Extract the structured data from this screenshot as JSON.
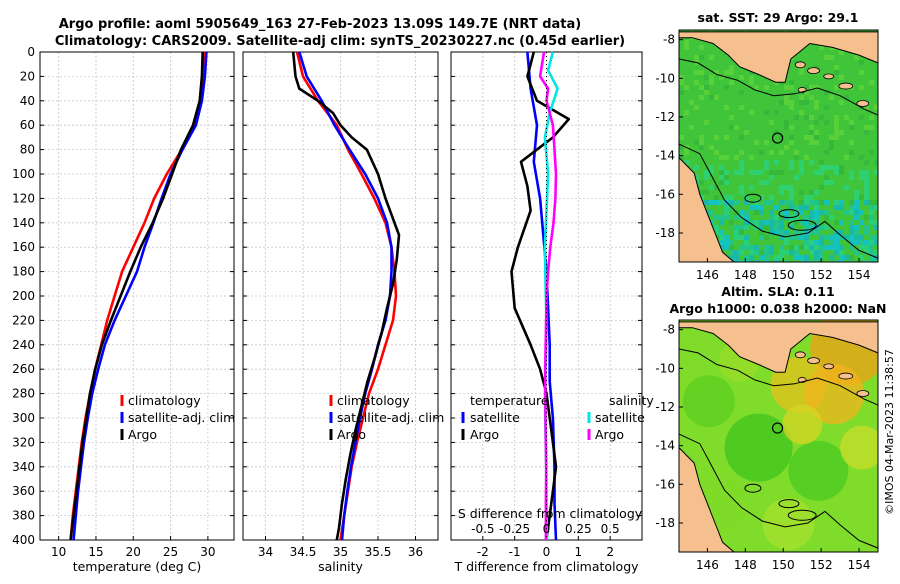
{
  "header": {
    "title_line1": "Argo profile: aoml 5905649_163 27-Feb-2023 13.09S 149.7E (NRT data)",
    "title_line2": "Climatology: CARS2009. Satellite-adj clim: synTS_20230227.nc (0.45d earlier)"
  },
  "credit": "©IMOS 04-Mar-2023 11:38:57",
  "colors": {
    "climatology": "#ff0000",
    "satellite": "#0000ff",
    "argo": "#000000",
    "cyan": "#00e5e5",
    "magenta": "#ff00ff",
    "land": "#f5c08e"
  },
  "chart_data": [
    {
      "type": "line",
      "id": "temperature",
      "xlabel": "temperature (deg C)",
      "ylabel": "depth",
      "xlim": [
        7.5,
        33.5
      ],
      "ylim": [
        400,
        0
      ],
      "xticks": [
        10,
        15,
        20,
        25,
        30
      ],
      "yticks": [
        0,
        20,
        40,
        60,
        80,
        100,
        120,
        140,
        160,
        180,
        200,
        220,
        240,
        260,
        280,
        300,
        320,
        340,
        360,
        380,
        400
      ],
      "legend": [
        "climatology",
        "satellite-adj. clim",
        "Argo"
      ],
      "series": [
        {
          "name": "climatology",
          "color": "#ff0000",
          "points": [
            [
              29.6,
              0
            ],
            [
              29.4,
              20
            ],
            [
              29.0,
              40
            ],
            [
              28.2,
              60
            ],
            [
              26.5,
              80
            ],
            [
              24.5,
              100
            ],
            [
              22.8,
              120
            ],
            [
              21.5,
              140
            ],
            [
              20.0,
              160
            ],
            [
              18.5,
              180
            ],
            [
              17.5,
              200
            ],
            [
              16.5,
              220
            ],
            [
              15.7,
              240
            ],
            [
              14.9,
              260
            ],
            [
              14.2,
              280
            ],
            [
              13.6,
              300
            ],
            [
              13.1,
              320
            ],
            [
              12.7,
              340
            ],
            [
              12.3,
              360
            ],
            [
              11.9,
              380
            ],
            [
              11.6,
              400
            ]
          ]
        },
        {
          "name": "satellite-adj. clim",
          "color": "#0000ff",
          "points": [
            [
              29.8,
              0
            ],
            [
              29.6,
              20
            ],
            [
              29.2,
              40
            ],
            [
              28.4,
              60
            ],
            [
              26.6,
              80
            ],
            [
              25.0,
              100
            ],
            [
              23.8,
              120
            ],
            [
              22.7,
              140
            ],
            [
              21.5,
              160
            ],
            [
              20.5,
              180
            ],
            [
              19.0,
              200
            ],
            [
              17.5,
              220
            ],
            [
              16.2,
              240
            ],
            [
              15.3,
              260
            ],
            [
              14.5,
              280
            ],
            [
              13.9,
              300
            ],
            [
              13.4,
              320
            ],
            [
              13.0,
              340
            ],
            [
              12.6,
              360
            ],
            [
              12.3,
              380
            ],
            [
              12.0,
              400
            ]
          ]
        },
        {
          "name": "Argo",
          "color": "#000000",
          "points": [
            [
              29.3,
              0
            ],
            [
              29.2,
              20
            ],
            [
              28.9,
              40
            ],
            [
              28.0,
              60
            ],
            [
              26.4,
              80
            ],
            [
              25.2,
              100
            ],
            [
              24.0,
              120
            ],
            [
              22.6,
              140
            ],
            [
              21.0,
              160
            ],
            [
              19.6,
              180
            ],
            [
              18.3,
              200
            ],
            [
              17.0,
              220
            ],
            [
              15.8,
              240
            ],
            [
              14.9,
              260
            ],
            [
              14.2,
              280
            ],
            [
              13.7,
              300
            ],
            [
              13.2,
              320
            ],
            [
              12.8,
              340
            ],
            [
              12.4,
              360
            ],
            [
              12.0,
              380
            ],
            [
              11.6,
              400
            ]
          ]
        }
      ]
    },
    {
      "type": "line",
      "id": "salinity",
      "xlabel": "salinity",
      "ylabel": "depth",
      "xlim": [
        33.7,
        36.3
      ],
      "ylim": [
        400,
        0
      ],
      "xticks": [
        34,
        34.5,
        35,
        35.5,
        36
      ],
      "tick_labels": [
        "34",
        "34.5",
        "35",
        "35.5",
        "36"
      ],
      "legend": [
        "climatology",
        "satellite-adj. clim",
        "Argo"
      ],
      "series": [
        {
          "name": "climatology",
          "color": "#ff0000",
          "points": [
            [
              34.42,
              0
            ],
            [
              34.5,
              20
            ],
            [
              34.7,
              40
            ],
            [
              34.95,
              60
            ],
            [
              35.1,
              80
            ],
            [
              35.28,
              100
            ],
            [
              35.45,
              120
            ],
            [
              35.6,
              140
            ],
            [
              35.68,
              160
            ],
            [
              35.72,
              180
            ],
            [
              35.74,
              200
            ],
            [
              35.7,
              220
            ],
            [
              35.6,
              240
            ],
            [
              35.5,
              260
            ],
            [
              35.38,
              280
            ],
            [
              35.3,
              300
            ],
            [
              35.22,
              320
            ],
            [
              35.15,
              340
            ],
            [
              35.1,
              360
            ],
            [
              35.05,
              380
            ],
            [
              35.0,
              400
            ]
          ]
        },
        {
          "name": "satellite-adj. clim",
          "color": "#0000ff",
          "points": [
            [
              34.45,
              0
            ],
            [
              34.55,
              20
            ],
            [
              34.75,
              40
            ],
            [
              34.92,
              60
            ],
            [
              35.12,
              80
            ],
            [
              35.33,
              100
            ],
            [
              35.5,
              120
            ],
            [
              35.62,
              140
            ],
            [
              35.68,
              160
            ],
            [
              35.68,
              180
            ],
            [
              35.66,
              200
            ],
            [
              35.6,
              220
            ],
            [
              35.5,
              240
            ],
            [
              35.42,
              260
            ],
            [
              35.33,
              280
            ],
            [
              35.26,
              300
            ],
            [
              35.2,
              320
            ],
            [
              35.14,
              340
            ],
            [
              35.09,
              360
            ],
            [
              35.05,
              380
            ],
            [
              35.02,
              400
            ]
          ]
        },
        {
          "name": "Argo",
          "color": "#000000",
          "points": [
            [
              34.37,
              0
            ],
            [
              34.4,
              20
            ],
            [
              34.45,
              30
            ],
            [
              34.7,
              40
            ],
            [
              34.9,
              50
            ],
            [
              35.0,
              60
            ],
            [
              35.15,
              70
            ],
            [
              35.35,
              80
            ],
            [
              35.5,
              100
            ],
            [
              35.6,
              120
            ],
            [
              35.72,
              140
            ],
            [
              35.78,
              150
            ],
            [
              35.75,
              170
            ],
            [
              35.7,
              190
            ],
            [
              35.62,
              210
            ],
            [
              35.55,
              230
            ],
            [
              35.46,
              250
            ],
            [
              35.36,
              270
            ],
            [
              35.28,
              290
            ],
            [
              35.2,
              310
            ],
            [
              35.13,
              330
            ],
            [
              35.07,
              350
            ],
            [
              35.02,
              370
            ],
            [
              34.98,
              390
            ],
            [
              34.95,
              400
            ]
          ]
        }
      ]
    },
    {
      "type": "line",
      "id": "differences",
      "xlabel": "T difference from climatology",
      "top_axis_label": "S difference from climatology",
      "xlim": [
        -3,
        3
      ],
      "ylim": [
        400,
        0
      ],
      "xticks": [
        -2,
        -1,
        0,
        1,
        2
      ],
      "s_ticks": [
        -0.5,
        -0.25,
        0,
        0.25,
        0.5
      ],
      "s_tick_labels": [
        "-0.5",
        "-0.25",
        "0",
        "0.25",
        "0.5"
      ],
      "legend_temperature_title": "temperature",
      "legend_salinity_title": "salinity",
      "legend_temperature": [
        "satellite",
        "Argo"
      ],
      "legend_salinity": [
        "satellite",
        "Argo"
      ],
      "series": [
        {
          "name": "temperature satellite",
          "color": "#0000ff",
          "points": [
            [
              -0.6,
              0
            ],
            [
              -0.5,
              30
            ],
            [
              -0.3,
              60
            ],
            [
              -0.4,
              90
            ],
            [
              -0.2,
              120
            ],
            [
              -0.1,
              150
            ],
            [
              0.0,
              180
            ],
            [
              0.05,
              210
            ],
            [
              0.1,
              240
            ],
            [
              0.1,
              270
            ],
            [
              0.2,
              300
            ],
            [
              0.25,
              340
            ],
            [
              0.25,
              370
            ],
            [
              0.3,
              400
            ]
          ]
        },
        {
          "name": "temperature Argo",
          "color": "#000000",
          "points": [
            [
              -0.4,
              0
            ],
            [
              -0.6,
              20
            ],
            [
              -0.3,
              40
            ],
            [
              0.7,
              55
            ],
            [
              0.2,
              70
            ],
            [
              -0.8,
              90
            ],
            [
              -0.6,
              110
            ],
            [
              -0.5,
              130
            ],
            [
              -0.9,
              160
            ],
            [
              -1.1,
              180
            ],
            [
              -1.0,
              210
            ],
            [
              -0.5,
              240
            ],
            [
              -0.2,
              260
            ],
            [
              0.0,
              280
            ],
            [
              0.1,
              300
            ],
            [
              0.2,
              320
            ],
            [
              0.3,
              340
            ],
            [
              0.2,
              360
            ],
            [
              0.1,
              380
            ],
            [
              0.0,
              400
            ]
          ]
        },
        {
          "name": "salinity satellite",
          "color": "#00e5e5",
          "points": [
            [
              0.2,
              0
            ],
            [
              0.05,
              15
            ],
            [
              0.35,
              30
            ],
            [
              0.1,
              50
            ],
            [
              -0.05,
              70
            ],
            [
              0.05,
              100
            ],
            [
              0.0,
              130
            ],
            [
              -0.05,
              160
            ],
            [
              -0.03,
              190
            ],
            [
              0.0,
              220
            ],
            [
              -0.02,
              250
            ],
            [
              -0.05,
              280
            ],
            [
              -0.03,
              310
            ],
            [
              -0.01,
              340
            ],
            [
              0.0,
              370
            ],
            [
              0.02,
              400
            ]
          ]
        },
        {
          "name": "salinity Argo",
          "color": "#ff00ff",
          "points": [
            [
              -0.08,
              0
            ],
            [
              -0.2,
              20
            ],
            [
              0.05,
              30
            ],
            [
              0.0,
              40
            ],
            [
              0.2,
              60
            ],
            [
              0.25,
              80
            ],
            [
              0.3,
              100
            ],
            [
              0.28,
              120
            ],
            [
              0.22,
              140
            ],
            [
              0.12,
              160
            ],
            [
              0.05,
              180
            ],
            [
              0.0,
              200
            ],
            [
              -0.02,
              230
            ],
            [
              -0.04,
              260
            ],
            [
              -0.03,
              300
            ],
            [
              -0.01,
              340
            ],
            [
              -0.02,
              370
            ],
            [
              -0.02,
              400
            ]
          ]
        }
      ]
    },
    {
      "type": "heatmap",
      "id": "sst_map",
      "title": "sat. SST: 29 Argo: 29.1",
      "xlim": [
        144.5,
        155
      ],
      "ylim": [
        -19.5,
        -7.5
      ],
      "xticks": [
        146,
        148,
        150,
        152,
        154
      ],
      "yticks": [
        -8,
        -10,
        -12,
        -14,
        -16,
        -18
      ],
      "profile_location": [
        149.7,
        -13.09
      ]
    },
    {
      "type": "heatmap",
      "id": "sla_map",
      "title_line1": "Altim. SLA: 0.11",
      "title_line2": "Argo h1000: 0.038 h2000: NaN",
      "xlim": [
        144.5,
        155
      ],
      "ylim": [
        -19.5,
        -7.5
      ],
      "xticks": [
        146,
        148,
        150,
        152,
        154
      ],
      "yticks": [
        -8,
        -10,
        -12,
        -14,
        -16,
        -18
      ],
      "profile_location": [
        149.7,
        -13.09
      ]
    }
  ]
}
